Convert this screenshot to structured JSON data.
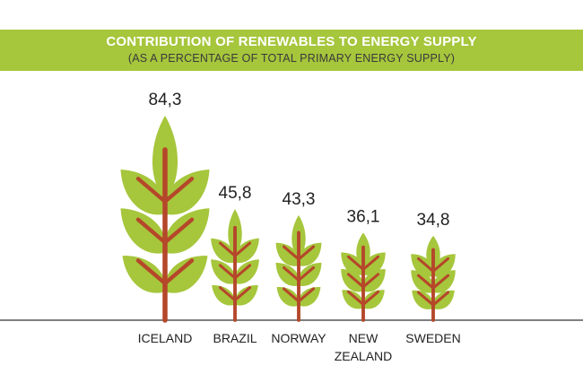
{
  "header": {
    "title": "CONTRIBUTION OF RENEWABLES TO ENERGY SUPPLY",
    "subtitle": "(AS A PERCENTAGE OF TOTAL PRIMARY ENERGY SUPPLY)"
  },
  "colors": {
    "banner": "#a6c63c",
    "leaf": "#a6c63c",
    "stem": "#b5472a",
    "baseline": "#333333"
  },
  "chart_data": {
    "type": "bar",
    "mark": "stylized-tree",
    "title": "CONTRIBUTION OF RENEWABLES TO ENERGY SUPPLY",
    "subtitle": "(AS A PERCENTAGE OF TOTAL PRIMARY ENERGY SUPPLY)",
    "categories": [
      [
        "ICELAND"
      ],
      [
        "BRAZIL"
      ],
      [
        "NORWAY"
      ],
      [
        "NEW",
        "ZEALAND"
      ],
      [
        "SWEDEN"
      ]
    ],
    "values": [
      84.3,
      45.8,
      43.3,
      36.1,
      34.8
    ],
    "value_labels": [
      "84,3",
      "45,8",
      "43,3",
      "36,1",
      "34,8"
    ],
    "ylim": [
      0,
      84.3
    ],
    "grid": false,
    "legend": "none"
  }
}
